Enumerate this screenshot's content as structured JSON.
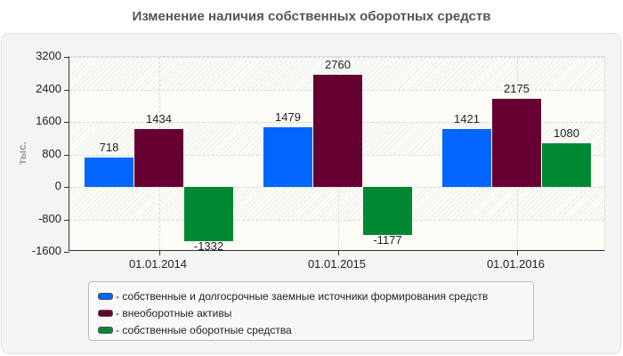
{
  "chart_data": {
    "type": "bar",
    "title": "Изменение наличия собственных оборотных средств",
    "xlabel": "",
    "ylabel": "тыс.",
    "ylim": [
      -1600,
      3200
    ],
    "yticks": [
      3200,
      2400,
      1600,
      800,
      0,
      -800,
      -1600
    ],
    "categories": [
      "01.01.2014",
      "01.01.2015",
      "01.01.2016"
    ],
    "series": [
      {
        "name": "- собственные и долгосрочные заемные источники формирования средств",
        "color": "#0066ff",
        "values": [
          718,
          1479,
          1421
        ]
      },
      {
        "name": "- внеоборотные активы",
        "color": "#660033",
        "values": [
          1434,
          2760,
          2175
        ]
      },
      {
        "name": "- собственные оборотные средства",
        "color": "#008833",
        "values": [
          -1332,
          -1177,
          1080
        ]
      }
    ],
    "grid": true,
    "legend_position": "bottom"
  },
  "labels": {
    "y_unit": "тыс."
  }
}
